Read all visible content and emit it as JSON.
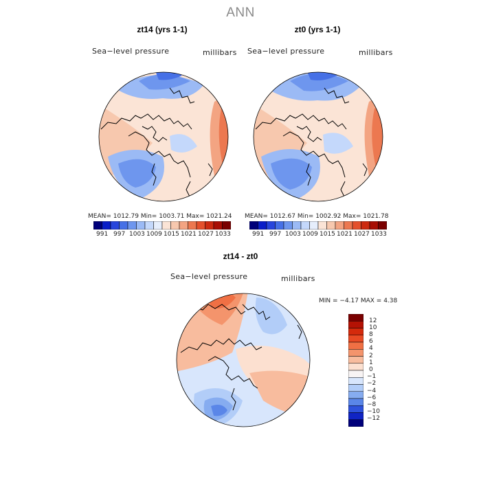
{
  "figure_title": "ANN",
  "panels": [
    {
      "title": "zt14 (yrs 1-1)",
      "field": "Sea−level pressure",
      "units": "millibars",
      "stats": "MEAN= 1012.79   Min= 1003.71   Max= 1021.24"
    },
    {
      "title": "zt0 (yrs 1-1)",
      "field": "Sea−level pressure",
      "units": "millibars",
      "stats": "MEAN= 1012.67   Min= 1002.92   Max= 1021.78"
    },
    {
      "title": "zt14 - zt0",
      "field": "Sea−level pressure",
      "units": "millibars",
      "stats": "MIN =  −4.17  MAX =    4.38"
    }
  ],
  "colorbar_top": {
    "labels": [
      "991",
      "997",
      "1003",
      "1009",
      "1015",
      "1021",
      "1027",
      "1033"
    ],
    "colors": [
      "#00007a",
      "#0a1ec8",
      "#2846dc",
      "#4670e6",
      "#6e96ee",
      "#9bbaf5",
      "#c4d8fb",
      "#e6eefc",
      "#fbe4d6",
      "#f7c8ae",
      "#f3a482",
      "#ec7850",
      "#e4502c",
      "#cc2a10",
      "#a80e04",
      "#7a0000"
    ]
  },
  "colorbar_diff": {
    "labels": [
      "12",
      "10",
      "8",
      "6",
      "4",
      "2",
      "1",
      "0",
      "−1",
      "−2",
      "−4",
      "−6",
      "−8",
      "−10",
      "−12"
    ],
    "colors": [
      "#7a0000",
      "#b41204",
      "#d42a0c",
      "#e84a24",
      "#f07044",
      "#f4946c",
      "#f8bc9e",
      "#fce0d0",
      "#f8f4f4",
      "#d8e6fc",
      "#b2cdf8",
      "#86acf0",
      "#5a86e8",
      "#2e52dc",
      "#1024c4",
      "#00007a"
    ]
  },
  "legend_colors": {
    "land_outline": "#000000",
    "low_pressure": "#6e96ee",
    "high_pressure": "#f3a482",
    "neutral": "#fbe4d6"
  }
}
